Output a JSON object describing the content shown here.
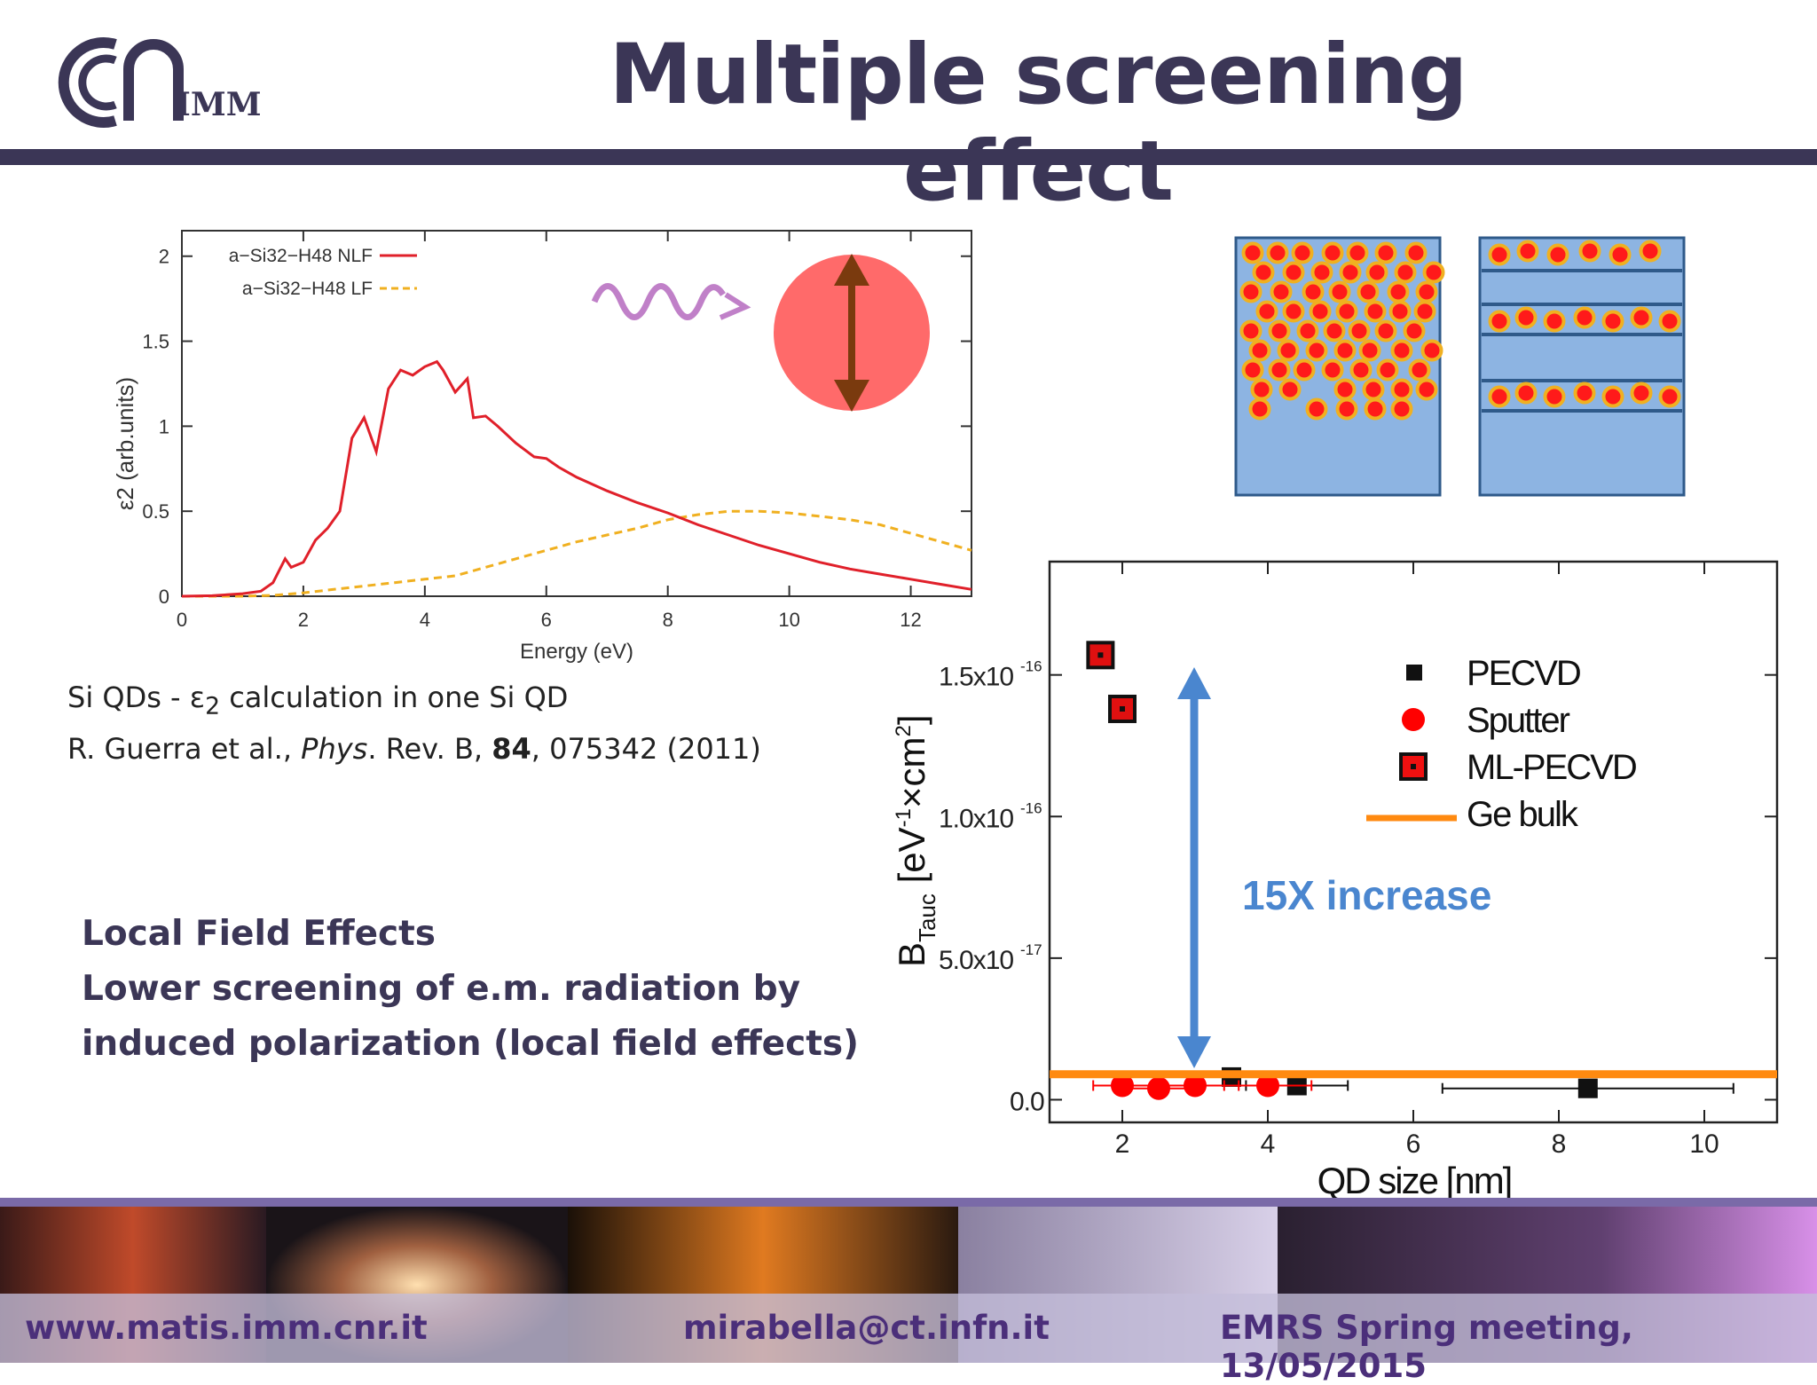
{
  "header": {
    "title": "Multiple screening effect",
    "logo_text": "IMM"
  },
  "left_chart": {
    "ylabel": "ε2   (arb.units)",
    "xlabel": "Energy (eV)",
    "legend": [
      {
        "label": "a−Si32−H48 NLF",
        "color": "#e0202a",
        "dash": false
      },
      {
        "label": "a−Si32−H48 LF",
        "color": "#f0b020",
        "dash": true
      }
    ],
    "x_ticks": [
      "0",
      "2",
      "4",
      "6",
      "8",
      "10",
      "12"
    ],
    "y_ticks": [
      "0",
      "0.5",
      "1",
      "1.5",
      "2"
    ]
  },
  "caption": {
    "line1_pre": "Si QDs - ε",
    "line1_sub": "2",
    "line1_post": " calculation in one Si QD",
    "line2_authors": "R. Guerra et al., ",
    "line2_journal": "Phys",
    "line2_rest": ". Rev. B, ",
    "line2_vol": "84",
    "line2_end": ", 075342 (2011)"
  },
  "bullets": {
    "line1": "Local Field Effects",
    "line2": "Lower screening of e.m. radiation by",
    "line3": "induced polarization (local field effects)"
  },
  "right_chart": {
    "annotation": "15X increase",
    "xlabel": "QD size [nm]",
    "ylabel_main": "B",
    "ylabel_sub": "Tauc",
    "ylabel_unit_a": " [eV",
    "ylabel_unit_b": "-1",
    "ylabel_unit_c": "×cm",
    "ylabel_unit_d": "2",
    "ylabel_unit_e": "]",
    "x_ticks": [
      "2",
      "4",
      "6",
      "8",
      "10"
    ],
    "y_ticks": [
      "0.0",
      "5.0x10",
      "1.0x10",
      "1.5x10"
    ],
    "y_exps": [
      "",
      "-17",
      "-16",
      "-16"
    ],
    "legend": [
      "PECVD",
      "Sputter",
      "ML-PECVD",
      "Ge bulk"
    ]
  },
  "chart_data": [
    {
      "type": "line",
      "xlabel": "Energy (eV)",
      "ylabel": "ε2 (arb.units)",
      "xlim": [
        0,
        13
      ],
      "ylim": [
        0,
        2.15
      ],
      "series": [
        {
          "name": "a−Si32−H48 NLF",
          "color": "#e0202a",
          "style": "solid",
          "x": [
            0,
            0.5,
            1.0,
            1.3,
            1.5,
            1.6,
            1.7,
            1.8,
            2.0,
            2.2,
            2.4,
            2.6,
            2.8,
            3.0,
            3.2,
            3.4,
            3.6,
            3.8,
            4.0,
            4.2,
            4.3,
            4.5,
            4.7,
            4.8,
            5.0,
            5.2,
            5.5,
            5.8,
            6.0,
            6.2,
            6.5,
            7.0,
            7.5,
            8.0,
            8.5,
            9.0,
            9.5,
            10.0,
            10.5,
            11.0,
            11.5,
            12.0,
            12.5,
            13.0
          ],
          "y": [
            0,
            0.003,
            0.015,
            0.03,
            0.08,
            0.15,
            0.22,
            0.17,
            0.2,
            0.33,
            0.4,
            0.5,
            0.93,
            1.05,
            0.85,
            1.22,
            1.33,
            1.3,
            1.35,
            1.38,
            1.33,
            1.2,
            1.28,
            1.05,
            1.06,
            1.0,
            0.9,
            0.82,
            0.81,
            0.76,
            0.7,
            0.62,
            0.55,
            0.49,
            0.42,
            0.36,
            0.3,
            0.25,
            0.2,
            0.16,
            0.13,
            0.1,
            0.07,
            0.04
          ]
        },
        {
          "name": "a−Si32−H48 LF",
          "color": "#f0b020",
          "style": "dashed",
          "x": [
            0,
            1,
            1.5,
            2,
            2.5,
            3,
            3.5,
            4,
            4.5,
            5,
            5.5,
            6,
            6.5,
            7,
            7.5,
            8,
            8.5,
            9,
            9.5,
            10,
            10.5,
            11,
            11.5,
            12,
            12.5,
            13
          ],
          "y": [
            0,
            0,
            0.005,
            0.02,
            0.04,
            0.06,
            0.08,
            0.1,
            0.12,
            0.17,
            0.22,
            0.27,
            0.32,
            0.36,
            0.4,
            0.45,
            0.48,
            0.5,
            0.5,
            0.49,
            0.47,
            0.45,
            0.42,
            0.37,
            0.32,
            0.27
          ]
        }
      ]
    },
    {
      "type": "scatter",
      "xlabel": "QD size [nm]",
      "ylabel": "B_Tauc [eV^-1×cm^2]",
      "xlim": [
        1,
        11
      ],
      "ylim": [
        -8e-18,
        1.9e-16
      ],
      "series": [
        {
          "name": "PECVD",
          "marker": "square",
          "color": "#111111",
          "points": [
            {
              "x": 3.5,
              "y": 8e-18,
              "xerr": 0.6
            },
            {
              "x": 4.4,
              "y": 5e-18,
              "xerr": 0.7
            },
            {
              "x": 8.4,
              "y": 4e-18,
              "xerr": 2.0
            }
          ]
        },
        {
          "name": "Sputter",
          "marker": "circle",
          "color": "#ff0000",
          "points": [
            {
              "x": 2.0,
              "y": 5e-18,
              "xerr": 0.4
            },
            {
              "x": 2.5,
              "y": 4e-18,
              "xerr": 0.5
            },
            {
              "x": 3.0,
              "y": 5e-18,
              "xerr": 0.6
            },
            {
              "x": 4.0,
              "y": 5e-18,
              "xerr": 0.6
            }
          ]
        },
        {
          "name": "ML-PECVD",
          "marker": "square-open",
          "color": "#e01010",
          "points": [
            {
              "x": 1.7,
              "y": 1.57e-16
            },
            {
              "x": 2.0,
              "y": 1.38e-16
            }
          ]
        },
        {
          "name": "Ge bulk",
          "type": "hline",
          "color": "#ff8a10",
          "y": 9e-18
        }
      ]
    }
  ]
}
